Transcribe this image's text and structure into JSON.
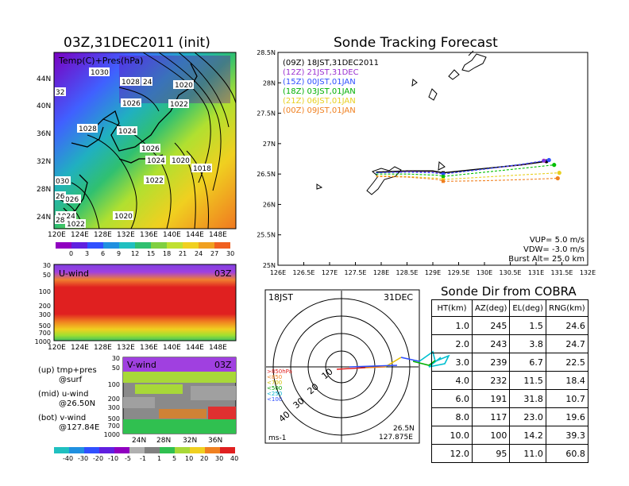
{
  "map_panel": {
    "title": "03Z,31DEC2011 (init)",
    "subtitle": "Temp(C)+Pres(hPa)",
    "lat_labels": [
      "44N",
      "40N",
      "36N",
      "32N",
      "28N",
      "24N"
    ],
    "lon_labels": [
      "120E",
      "124E",
      "128E",
      "132E",
      "136E",
      "140E",
      "144E",
      "148E"
    ],
    "isobar_labels": [
      "1030",
      "1028",
      "24",
      "1020",
      "1026",
      "1022",
      "1028",
      "1024",
      "1026",
      "1024",
      "1020",
      "1018",
      "1022",
      "1020",
      "1024",
      "1022",
      "026",
      "26",
      "28",
      "030",
      "32"
    ],
    "colorbar_labels": [
      "0",
      "3",
      "6",
      "9",
      "12",
      "15",
      "18",
      "21",
      "24",
      "27",
      "30"
    ]
  },
  "uwind_panel": {
    "title": "U-wind",
    "time": "03Z",
    "y_labels": [
      "30",
      "50",
      "100",
      "200",
      "300",
      "500",
      "700",
      "1000"
    ],
    "x_labels": [
      "120E",
      "124E",
      "128E",
      "132E",
      "136E",
      "140E",
      "144E",
      "148E"
    ]
  },
  "vwind_panel": {
    "title": "V-wind",
    "time": "03Z",
    "y_labels": [
      "30",
      "50",
      "100",
      "200",
      "300",
      "500",
      "700",
      "1000"
    ],
    "x_labels": [
      "24N",
      "28N",
      "32N",
      "36N"
    ],
    "colorbar_labels": [
      "-40",
      "-30",
      "-20",
      "-10",
      "-5",
      "-1",
      "1",
      "5",
      "10",
      "20",
      "30",
      "40"
    ]
  },
  "side_notes": [
    "(up) tmp+pres",
    "@surf",
    "(mid) u-wind",
    "@26.50N",
    "(bot) v-wind",
    "@127.84E"
  ],
  "tracking_panel": {
    "title": "Sonde Tracking Forecast",
    "legend": [
      "(09Z)  18JST,31DEC2011",
      "(12Z)  21JST,31DEC",
      "(15Z)  00JST,01JAN",
      "(18Z)  03JST,01JAN",
      "(21Z)  06JST,01JAN",
      "(00Z)  09JST,01JAN"
    ],
    "params": [
      "VUP=  5.0  m/s",
      "VDW= -3.0  m/s",
      "Burst Alt=  25.0  km"
    ]
  },
  "polar_panel": {
    "left_label": "18JST",
    "right_label": "31DEC",
    "level_labels": [
      ">850hPa",
      "<850",
      "<700",
      "<500",
      "<250",
      "<100"
    ],
    "ring_labels": [
      "10",
      "20",
      "30",
      "40"
    ],
    "unit": "ms-1",
    "loc_lat": "26.5N",
    "loc_lon": "127.875E"
  },
  "sonde_table": {
    "title": "Sonde Dir from COBRA",
    "headers": [
      "HT(km)",
      "AZ(deg)",
      "EL(deg)",
      "RNG(km)"
    ],
    "rows": [
      [
        "1.0",
        "245",
        "1.5",
        "24.6"
      ],
      [
        "2.0",
        "243",
        "3.8",
        "24.7"
      ],
      [
        "3.0",
        "239",
        "6.7",
        "22.5"
      ],
      [
        "4.0",
        "232",
        "11.5",
        "18.4"
      ],
      [
        "6.0",
        "191",
        "31.8",
        "10.7"
      ],
      [
        "8.0",
        "117",
        "23.0",
        "19.6"
      ],
      [
        "10.0",
        "100",
        "14.2",
        "39.3"
      ],
      [
        "12.0",
        "95",
        "11.0",
        "60.8"
      ]
    ]
  },
  "chart_data": {
    "type": "line",
    "title": "Sonde Tracking Forecast",
    "xlim": [
      126,
      132
    ],
    "ylim": [
      25,
      28.5
    ],
    "x_ticks": [
      "126E",
      "126.5E",
      "127E",
      "127.5E",
      "128E",
      "128.5E",
      "129E",
      "129.5E",
      "130E",
      "130.5E",
      "131E",
      "131.5E",
      "132E"
    ],
    "y_ticks": [
      "25N",
      "25.5N",
      "26N",
      "26.5N",
      "27N",
      "27.5N",
      "28N",
      "28.5N"
    ],
    "series": [
      {
        "name": "(09Z)  18JST,31DEC2011",
        "color": "#000000",
        "x": [
          127.9,
          128.5,
          129.0,
          129.2,
          130.0,
          130.7,
          131.2
        ],
        "y": [
          26.53,
          26.55,
          26.55,
          26.52,
          26.59,
          26.65,
          26.71
        ]
      },
      {
        "name": "(12Z)  21JST,31DEC",
        "color": "#9b30d0",
        "x": [
          127.9,
          128.5,
          129.0,
          129.2,
          130.0,
          130.7,
          131.15
        ],
        "y": [
          26.52,
          26.54,
          26.53,
          26.5,
          26.58,
          26.65,
          26.72
        ]
      },
      {
        "name": "(15Z)  00JST,01JAN",
        "color": "#3050ff",
        "x": [
          127.9,
          128.5,
          129.0,
          129.2,
          130.0,
          130.7,
          131.25
        ],
        "y": [
          26.52,
          26.53,
          26.52,
          26.5,
          26.58,
          26.66,
          26.73
        ]
      },
      {
        "name": "(18Z)  03JST,01JAN",
        "color": "#00c000",
        "x": [
          127.9,
          128.5,
          129.1,
          129.2,
          130.0,
          130.8,
          131.35
        ],
        "y": [
          26.5,
          26.5,
          26.48,
          26.46,
          26.53,
          26.6,
          26.65
        ]
      },
      {
        "name": "(21Z)  06JST,01JAN",
        "color": "#e8d020",
        "x": [
          127.9,
          128.5,
          129.1,
          129.2,
          130.0,
          130.8,
          131.45
        ],
        "y": [
          26.47,
          26.46,
          26.43,
          26.41,
          26.45,
          26.49,
          26.52
        ]
      },
      {
        "name": "(00Z)  09JST,01JAN",
        "color": "#f08020",
        "x": [
          127.9,
          128.5,
          129.1,
          129.2,
          130.0,
          130.8,
          131.42
        ],
        "y": [
          26.46,
          26.45,
          26.41,
          26.38,
          26.39,
          26.41,
          26.43
        ]
      }
    ]
  }
}
